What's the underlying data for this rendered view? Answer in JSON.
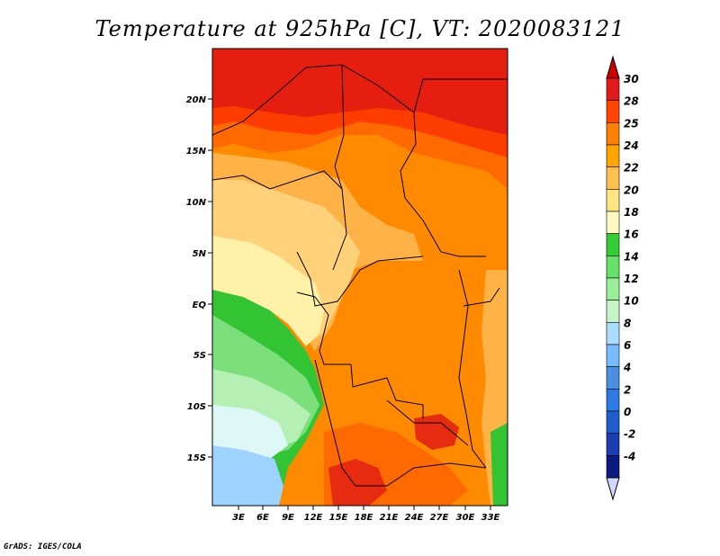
{
  "title": "Temperature at 925hPa [C], VT: 2020083121",
  "credit": "GrADS: IGES/COLA",
  "lat_labels": [
    "20N",
    "15N",
    "10N",
    "5N",
    "EQ",
    "5S",
    "10S",
    "15S"
  ],
  "lon_labels": [
    "3E",
    "6E",
    "9E",
    "12E",
    "15E",
    "18E",
    "21E",
    "24E",
    "27E",
    "30E",
    "33E"
  ],
  "colorbar": {
    "labels": [
      "30",
      "28",
      "25",
      "24",
      "22",
      "20",
      "18",
      "16",
      "14",
      "12",
      "10",
      "8",
      "6",
      "4",
      "2",
      "0",
      "-2",
      "-4"
    ],
    "colors": [
      "#e31a1c",
      "#ff4500",
      "#ff7f00",
      "#ffa500",
      "#ffc04d",
      "#ffe680",
      "#fff8c0",
      "#33cc33",
      "#66e066",
      "#99f099",
      "#c8f5c8",
      "#aaddff",
      "#77bbff",
      "#4a90e2",
      "#2f7be6",
      "#1e5fd0",
      "#1a3fb0",
      "#0a1a80"
    ],
    "top_arrow_color": "#cc0000",
    "bottom_arrow_color": "#d0d8ff"
  }
}
